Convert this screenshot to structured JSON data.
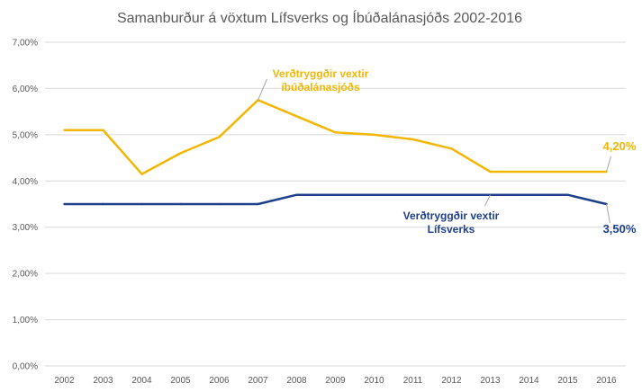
{
  "chart_data": {
    "type": "line",
    "title": "Samanburður á vöxtum Lífsverks og Íbúðalánasjóðs 2002-2016",
    "x": [
      "2002",
      "2003",
      "2004",
      "2005",
      "2006",
      "2007",
      "2008",
      "2009",
      "2010",
      "2011",
      "2012",
      "2013",
      "2014",
      "2015",
      "2016"
    ],
    "ylim": [
      0,
      7
    ],
    "yticks": [
      "0,00%",
      "1,00%",
      "2,00%",
      "3,00%",
      "4,00%",
      "5,00%",
      "6,00%",
      "7,00%"
    ],
    "grid": true,
    "series": [
      {
        "name": "Verðtryggðir vextir íbúðalánasjóðs",
        "label_lines": [
          "Verðtryggðir vextir",
          "íbúðalánasjóðs"
        ],
        "color": "#F2B705",
        "values": [
          5.1,
          5.1,
          4.15,
          4.6,
          4.95,
          5.75,
          5.4,
          5.05,
          5.0,
          4.9,
          4.7,
          4.2,
          4.2,
          4.2,
          4.2
        ],
        "end_label": "4,20%"
      },
      {
        "name": "Verðtryggðir vextir Lífsverks",
        "label_lines": [
          "Verðtryggðir vextir",
          "Lífsverks"
        ],
        "color": "#1F3F8C",
        "values": [
          3.5,
          3.5,
          3.5,
          3.5,
          3.5,
          3.5,
          3.7,
          3.7,
          3.7,
          3.7,
          3.7,
          3.7,
          3.7,
          3.7,
          3.5
        ],
        "end_label": "3,50%"
      }
    ]
  }
}
